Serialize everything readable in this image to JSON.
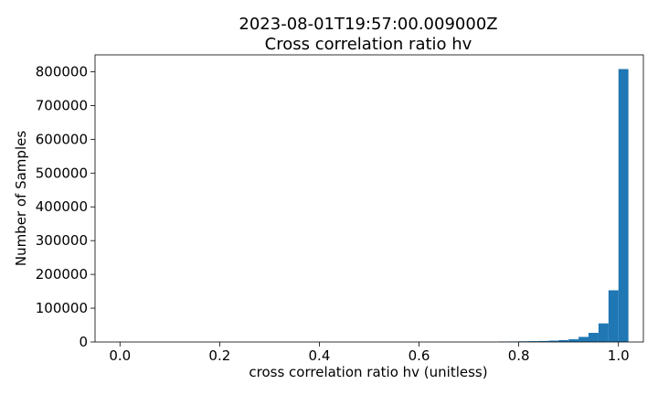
{
  "chart_data": {
    "type": "bar",
    "title": "2023-08-01T19:57:00.009000Z",
    "subtitle": "Cross correlation ratio hv",
    "xlabel": "cross correlation ratio hv (unitless)",
    "ylabel": "Number of Samples",
    "xlim": [
      -0.05,
      1.05
    ],
    "ylim": [
      0,
      850000
    ],
    "xticks": [
      "0.0",
      "0.2",
      "0.4",
      "0.6",
      "0.8",
      "1.0"
    ],
    "xtick_values": [
      0.0,
      0.2,
      0.4,
      0.6,
      0.8,
      1.0
    ],
    "yticks": [
      "0",
      "100000",
      "200000",
      "300000",
      "400000",
      "500000",
      "600000",
      "700000",
      "800000"
    ],
    "ytick_values": [
      0,
      100000,
      200000,
      300000,
      400000,
      500000,
      600000,
      700000,
      800000
    ],
    "bin_width": 0.02,
    "bins": [
      {
        "x": 0.76,
        "value": 1000
      },
      {
        "x": 0.78,
        "value": 1500
      },
      {
        "x": 0.8,
        "value": 2000
      },
      {
        "x": 0.82,
        "value": 2500
      },
      {
        "x": 0.84,
        "value": 3000
      },
      {
        "x": 0.86,
        "value": 4000
      },
      {
        "x": 0.88,
        "value": 5500
      },
      {
        "x": 0.9,
        "value": 8000
      },
      {
        "x": 0.92,
        "value": 15000
      },
      {
        "x": 0.94,
        "value": 27000
      },
      {
        "x": 0.96,
        "value": 55000
      },
      {
        "x": 0.98,
        "value": 153000
      },
      {
        "x": 1.0,
        "value": 808000
      }
    ],
    "bar_color": "#1f77b4",
    "grid": false
  }
}
